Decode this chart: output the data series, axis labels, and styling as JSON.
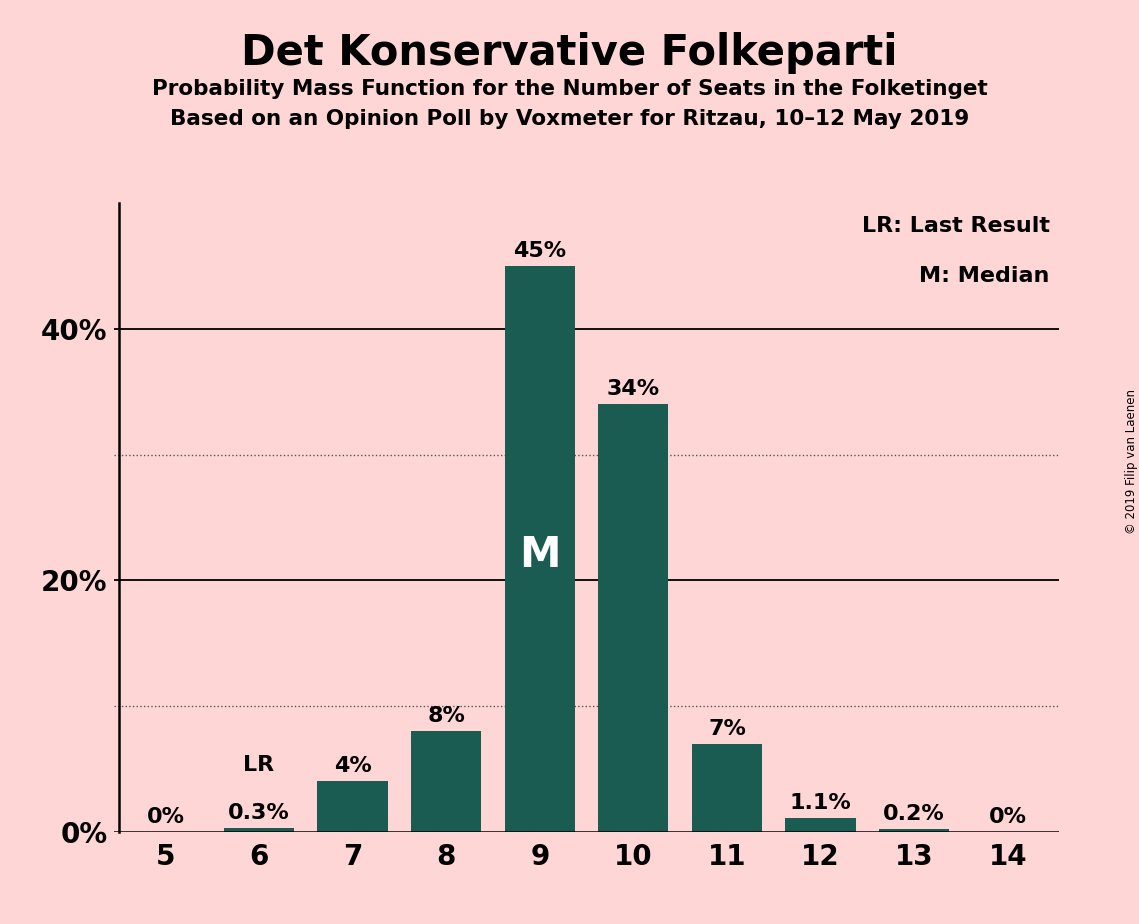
{
  "title": "Det Konservative Folkeparti",
  "subtitle1": "Probability Mass Function for the Number of Seats in the Folketinget",
  "subtitle2": "Based on an Opinion Poll by Voxmeter for Ritzau, 10–12 May 2019",
  "copyright": "© 2019 Filip van Laenen",
  "categories": [
    5,
    6,
    7,
    8,
    9,
    10,
    11,
    12,
    13,
    14
  ],
  "values": [
    0.0,
    0.3,
    4.0,
    8.0,
    45.0,
    34.0,
    7.0,
    1.1,
    0.2,
    0.0
  ],
  "bar_color": "#1a5c52",
  "background_color": "#ffd6d6",
  "bar_labels": [
    "0%",
    "0.3%",
    "4%",
    "8%",
    "45%",
    "34%",
    "7%",
    "1.1%",
    "0.2%",
    "0%"
  ],
  "median_bar_index": 4,
  "lr_bar_index": 1,
  "solid_gridlines": [
    20,
    40
  ],
  "dotted_gridlines": [
    10,
    30
  ],
  "legend_lr": "LR: Last Result",
  "legend_m": "M: Median",
  "ymax": 50,
  "ytick_positions": [
    0,
    20,
    40
  ],
  "ytick_labels": [
    "0%",
    "20%",
    "40%"
  ]
}
